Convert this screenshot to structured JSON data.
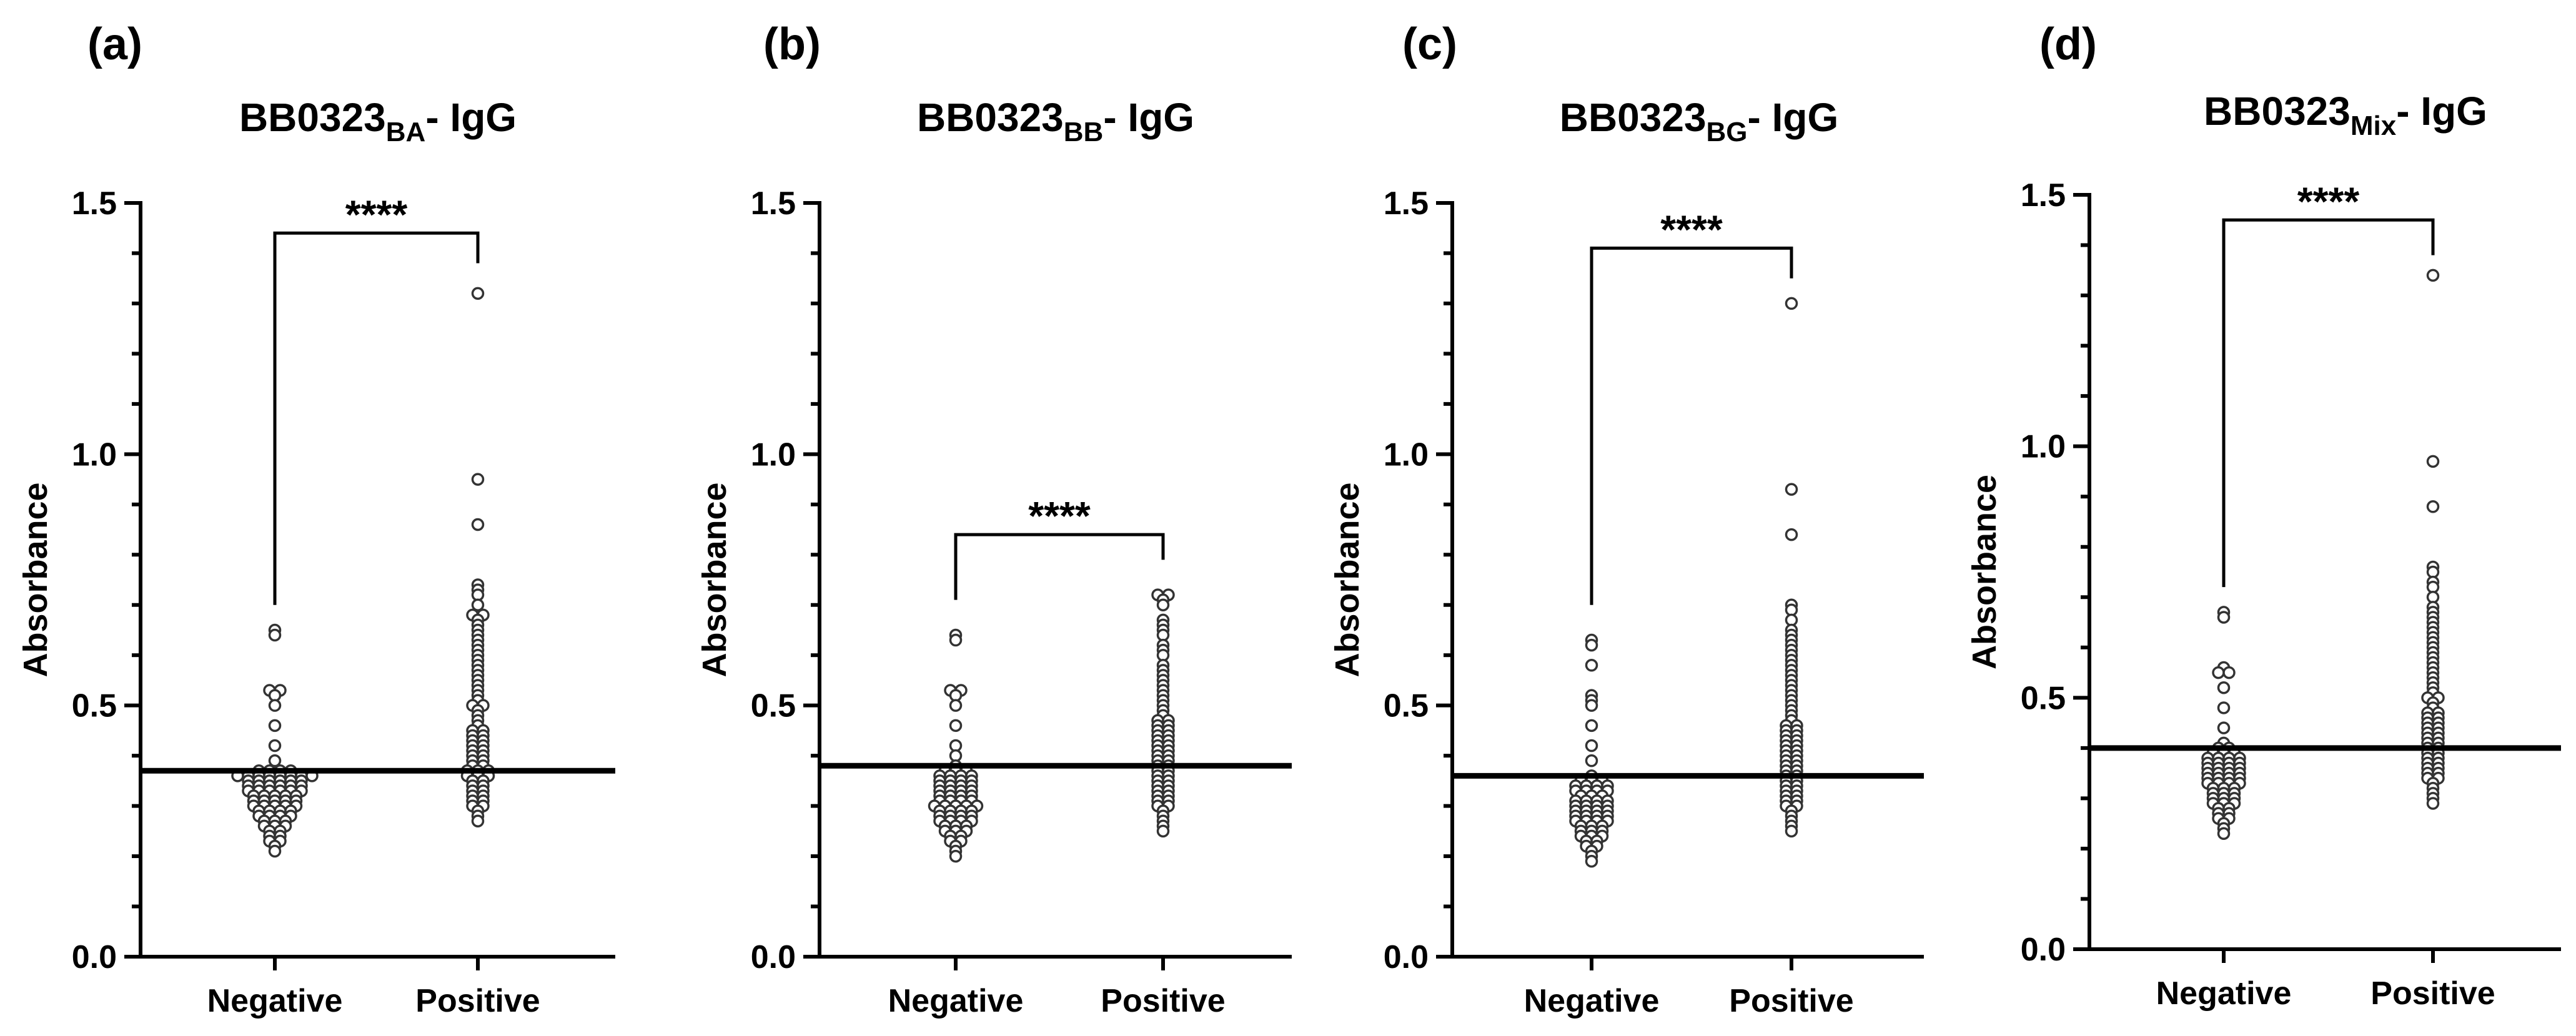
{
  "chart_data": [
    {
      "type": "scatter",
      "panel": "(a)",
      "title_main": "BB0323",
      "title_sub": "BA",
      "title_suffix": "- IgG",
      "ylabel": "Absorbance",
      "ylim": [
        0,
        1.5
      ],
      "yticks": [
        "0.0",
        "0.5",
        "1.0",
        "1.5"
      ],
      "categories": [
        "Negative",
        "Positive"
      ],
      "cutoff": 0.37,
      "significance": "****",
      "bracket_level": 1.44,
      "bracket_left_bottom": 0.7,
      "bracket_right_bottom": 1.38,
      "series": [
        {
          "name": "Negative",
          "values": [
            0.65,
            0.64,
            0.53,
            0.53,
            0.52,
            0.5,
            0.46,
            0.42,
            0.39,
            0.37,
            0.37,
            0.37,
            0.37,
            0.36,
            0.36,
            0.36,
            0.36,
            0.36,
            0.36,
            0.36,
            0.36,
            0.35,
            0.35,
            0.35,
            0.35,
            0.35,
            0.35,
            0.34,
            0.34,
            0.34,
            0.34,
            0.34,
            0.34,
            0.33,
            0.33,
            0.33,
            0.33,
            0.33,
            0.33,
            0.32,
            0.32,
            0.32,
            0.32,
            0.32,
            0.31,
            0.31,
            0.31,
            0.31,
            0.31,
            0.3,
            0.3,
            0.3,
            0.3,
            0.3,
            0.29,
            0.29,
            0.29,
            0.29,
            0.28,
            0.28,
            0.28,
            0.28,
            0.27,
            0.27,
            0.27,
            0.26,
            0.26,
            0.26,
            0.25,
            0.25,
            0.24,
            0.24,
            0.23,
            0.23,
            0.22,
            0.21
          ]
        },
        {
          "name": "Positive",
          "values": [
            1.32,
            0.95,
            0.86,
            0.74,
            0.73,
            0.72,
            0.7,
            0.68,
            0.68,
            0.67,
            0.66,
            0.65,
            0.64,
            0.63,
            0.62,
            0.61,
            0.6,
            0.59,
            0.58,
            0.57,
            0.56,
            0.55,
            0.54,
            0.53,
            0.52,
            0.51,
            0.5,
            0.5,
            0.49,
            0.48,
            0.47,
            0.46,
            0.45,
            0.45,
            0.44,
            0.44,
            0.43,
            0.43,
            0.42,
            0.42,
            0.41,
            0.41,
            0.4,
            0.4,
            0.39,
            0.39,
            0.38,
            0.38,
            0.37,
            0.37,
            0.37,
            0.36,
            0.36,
            0.36,
            0.35,
            0.35,
            0.34,
            0.34,
            0.33,
            0.33,
            0.32,
            0.32,
            0.31,
            0.31,
            0.3,
            0.3,
            0.29,
            0.28,
            0.27
          ]
        }
      ]
    },
    {
      "type": "scatter",
      "panel": "(b)",
      "title_main": "BB0323",
      "title_sub": "BB",
      "title_suffix": "- IgG",
      "ylabel": "Absorbance",
      "ylim": [
        0,
        1.5
      ],
      "yticks": [
        "0.0",
        "0.5",
        "1.0",
        "1.5"
      ],
      "categories": [
        "Negative",
        "Positive"
      ],
      "cutoff": 0.38,
      "significance": "****",
      "bracket_level": 0.84,
      "bracket_left_bottom": 0.71,
      "bracket_right_bottom": 0.79,
      "series": [
        {
          "name": "Negative",
          "values": [
            0.64,
            0.63,
            0.53,
            0.53,
            0.52,
            0.5,
            0.46,
            0.42,
            0.4,
            0.38,
            0.37,
            0.37,
            0.37,
            0.36,
            0.36,
            0.36,
            0.36,
            0.35,
            0.35,
            0.35,
            0.35,
            0.34,
            0.34,
            0.34,
            0.34,
            0.33,
            0.33,
            0.33,
            0.33,
            0.32,
            0.32,
            0.32,
            0.32,
            0.31,
            0.31,
            0.31,
            0.31,
            0.3,
            0.3,
            0.3,
            0.3,
            0.3,
            0.29,
            0.29,
            0.29,
            0.29,
            0.28,
            0.28,
            0.28,
            0.28,
            0.27,
            0.27,
            0.27,
            0.27,
            0.26,
            0.26,
            0.26,
            0.25,
            0.25,
            0.25,
            0.24,
            0.24,
            0.23,
            0.23,
            0.22,
            0.21,
            0.2
          ]
        },
        {
          "name": "Positive",
          "values": [
            0.72,
            0.72,
            0.71,
            0.7,
            0.67,
            0.66,
            0.65,
            0.64,
            0.62,
            0.61,
            0.6,
            0.58,
            0.57,
            0.56,
            0.55,
            0.54,
            0.53,
            0.52,
            0.51,
            0.5,
            0.49,
            0.48,
            0.47,
            0.47,
            0.46,
            0.46,
            0.45,
            0.45,
            0.44,
            0.44,
            0.43,
            0.43,
            0.42,
            0.42,
            0.41,
            0.41,
            0.4,
            0.4,
            0.39,
            0.39,
            0.38,
            0.38,
            0.37,
            0.37,
            0.36,
            0.36,
            0.35,
            0.35,
            0.34,
            0.34,
            0.33,
            0.33,
            0.32,
            0.32,
            0.31,
            0.31,
            0.3,
            0.3,
            0.29,
            0.28,
            0.27,
            0.26,
            0.25
          ]
        }
      ]
    },
    {
      "type": "scatter",
      "panel": "(c)",
      "title_main": "BB0323",
      "title_sub": "BG",
      "title_suffix": "- IgG",
      "ylabel": "Absorbance",
      "ylim": [
        0,
        1.5
      ],
      "yticks": [
        "0.0",
        "0.5",
        "1.0",
        "1.5"
      ],
      "categories": [
        "Negative",
        "Positive"
      ],
      "cutoff": 0.36,
      "significance": "****",
      "bracket_level": 1.41,
      "bracket_left_bottom": 0.7,
      "bracket_right_bottom": 1.35,
      "series": [
        {
          "name": "Negative",
          "values": [
            0.63,
            0.62,
            0.58,
            0.52,
            0.51,
            0.5,
            0.46,
            0.42,
            0.39,
            0.36,
            0.35,
            0.35,
            0.35,
            0.34,
            0.34,
            0.34,
            0.34,
            0.33,
            0.33,
            0.33,
            0.33,
            0.32,
            0.32,
            0.32,
            0.31,
            0.31,
            0.31,
            0.31,
            0.3,
            0.3,
            0.3,
            0.3,
            0.29,
            0.29,
            0.29,
            0.29,
            0.28,
            0.28,
            0.28,
            0.28,
            0.27,
            0.27,
            0.27,
            0.27,
            0.26,
            0.26,
            0.26,
            0.25,
            0.25,
            0.25,
            0.24,
            0.24,
            0.24,
            0.23,
            0.23,
            0.22,
            0.22,
            0.21,
            0.2,
            0.19
          ]
        },
        {
          "name": "Positive",
          "values": [
            1.3,
            0.93,
            0.84,
            0.7,
            0.69,
            0.67,
            0.65,
            0.64,
            0.63,
            0.62,
            0.61,
            0.6,
            0.59,
            0.58,
            0.57,
            0.56,
            0.55,
            0.54,
            0.53,
            0.52,
            0.51,
            0.5,
            0.49,
            0.48,
            0.47,
            0.46,
            0.46,
            0.45,
            0.45,
            0.44,
            0.44,
            0.43,
            0.43,
            0.42,
            0.42,
            0.41,
            0.41,
            0.4,
            0.4,
            0.39,
            0.39,
            0.38,
            0.38,
            0.37,
            0.37,
            0.36,
            0.36,
            0.35,
            0.35,
            0.34,
            0.34,
            0.33,
            0.33,
            0.32,
            0.32,
            0.31,
            0.31,
            0.3,
            0.3,
            0.29,
            0.28,
            0.27,
            0.26,
            0.25
          ]
        }
      ]
    },
    {
      "type": "scatter",
      "panel": "(d)",
      "title_main": "BB0323",
      "title_sub": "Mix",
      "title_suffix": "- IgG",
      "ylabel": "Absorbance",
      "ylim": [
        0,
        1.5
      ],
      "yticks": [
        "0.0",
        "0.5",
        "1.0",
        "1.5"
      ],
      "categories": [
        "Negative",
        "Positive"
      ],
      "cutoff": 0.4,
      "significance": "****",
      "bracket_level": 1.45,
      "bracket_left_bottom": 0.72,
      "bracket_right_bottom": 1.38,
      "series": [
        {
          "name": "Negative",
          "values": [
            0.67,
            0.66,
            0.56,
            0.55,
            0.55,
            0.52,
            0.48,
            0.44,
            0.41,
            0.4,
            0.4,
            0.39,
            0.39,
            0.39,
            0.38,
            0.38,
            0.38,
            0.38,
            0.37,
            0.37,
            0.37,
            0.37,
            0.36,
            0.36,
            0.36,
            0.36,
            0.35,
            0.35,
            0.35,
            0.35,
            0.34,
            0.34,
            0.34,
            0.34,
            0.33,
            0.33,
            0.33,
            0.33,
            0.32,
            0.32,
            0.32,
            0.31,
            0.31,
            0.31,
            0.3,
            0.3,
            0.3,
            0.29,
            0.29,
            0.29,
            0.28,
            0.28,
            0.27,
            0.27,
            0.26,
            0.26,
            0.25,
            0.24,
            0.23
          ]
        },
        {
          "name": "Positive",
          "values": [
            1.34,
            0.97,
            0.88,
            0.76,
            0.75,
            0.73,
            0.72,
            0.7,
            0.68,
            0.67,
            0.66,
            0.65,
            0.64,
            0.63,
            0.62,
            0.61,
            0.6,
            0.59,
            0.58,
            0.57,
            0.56,
            0.55,
            0.54,
            0.53,
            0.52,
            0.51,
            0.5,
            0.5,
            0.49,
            0.48,
            0.47,
            0.47,
            0.46,
            0.46,
            0.45,
            0.45,
            0.44,
            0.44,
            0.43,
            0.43,
            0.42,
            0.42,
            0.41,
            0.41,
            0.4,
            0.4,
            0.39,
            0.39,
            0.38,
            0.38,
            0.37,
            0.37,
            0.36,
            0.36,
            0.35,
            0.35,
            0.34,
            0.34,
            0.33,
            0.32,
            0.31,
            0.3,
            0.29
          ]
        }
      ]
    }
  ]
}
